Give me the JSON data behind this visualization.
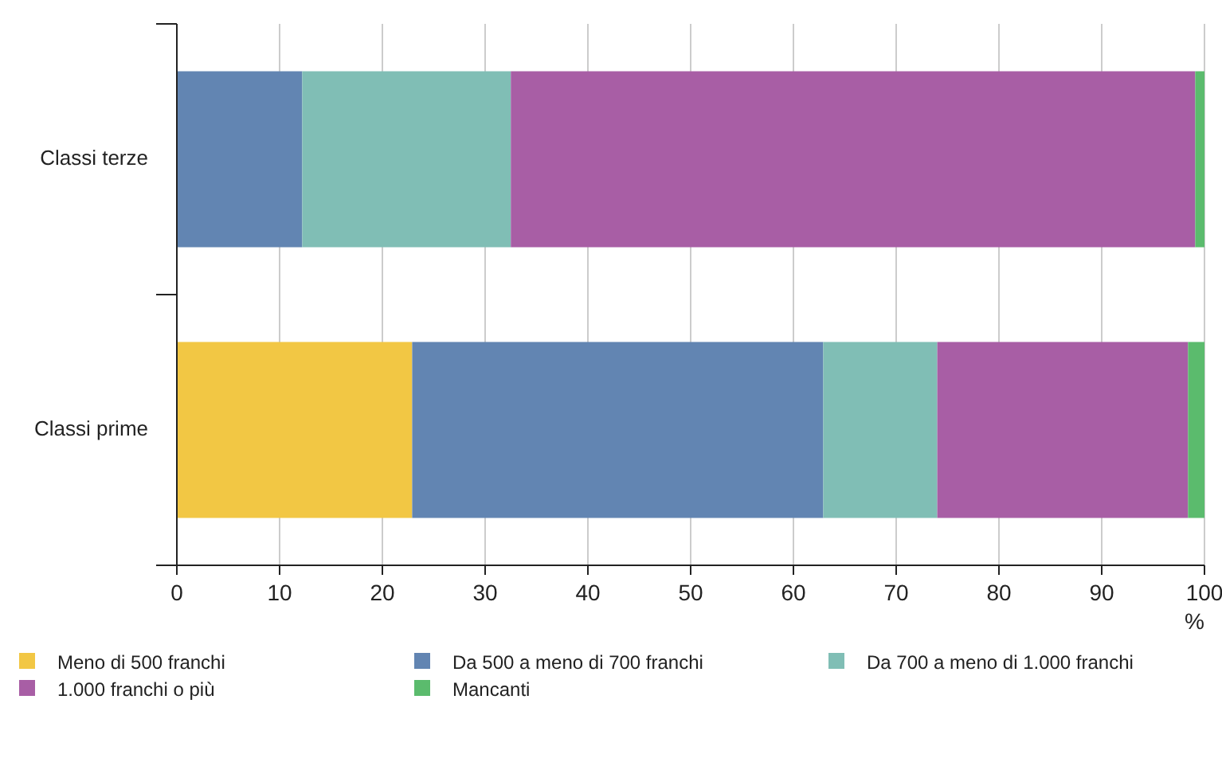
{
  "chart_data": {
    "type": "bar",
    "orientation": "horizontal",
    "stacked": true,
    "categories": [
      "Classi terze",
      "Classi prime"
    ],
    "xlabel": "%",
    "xlim": [
      0,
      100
    ],
    "xticks": [
      0,
      10,
      20,
      30,
      40,
      50,
      60,
      70,
      80,
      90,
      100
    ],
    "grid": "x",
    "legend": "bottom",
    "series": [
      {
        "name": "Meno di 500 franchi",
        "color": "#f2c744",
        "values": [
          0,
          22.9
        ]
      },
      {
        "name": "Da 500 a meno di 700 franchi",
        "color": "#6285b2",
        "values": [
          12.2,
          40.0
        ]
      },
      {
        "name": "Da 700 a meno di 1.000 franchi",
        "color": "#80beb5",
        "values": [
          20.3,
          11.1
        ]
      },
      {
        "name": "1.000 franchi o più",
        "color": "#a85ea5",
        "values": [
          66.6,
          24.4
        ]
      },
      {
        "name": "Mancanti",
        "color": "#5bbb6d",
        "values": [
          0.9,
          1.6
        ]
      }
    ]
  }
}
